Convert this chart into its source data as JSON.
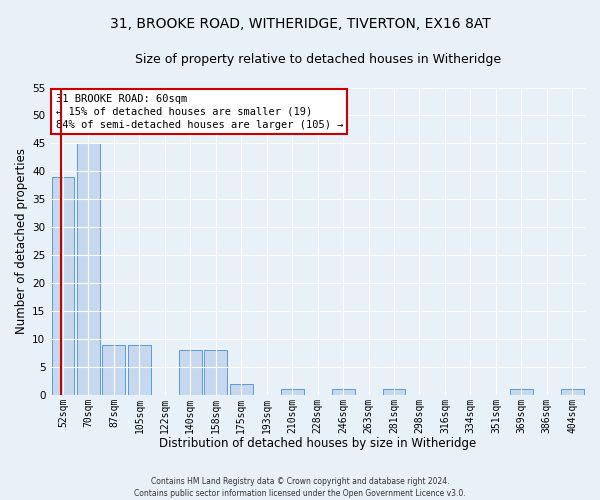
{
  "title1": "31, BROOKE ROAD, WITHERIDGE, TIVERTON, EX16 8AT",
  "title2": "Size of property relative to detached houses in Witheridge",
  "xlabel": "Distribution of detached houses by size in Witheridge",
  "ylabel": "Number of detached properties",
  "bin_labels": [
    "52sqm",
    "70sqm",
    "87sqm",
    "105sqm",
    "122sqm",
    "140sqm",
    "158sqm",
    "175sqm",
    "193sqm",
    "210sqm",
    "228sqm",
    "246sqm",
    "263sqm",
    "281sqm",
    "298sqm",
    "316sqm",
    "334sqm",
    "351sqm",
    "369sqm",
    "386sqm",
    "404sqm"
  ],
  "bar_values": [
    39,
    45,
    9,
    9,
    0,
    8,
    8,
    2,
    0,
    1,
    0,
    1,
    0,
    1,
    0,
    0,
    0,
    0,
    1,
    0,
    1
  ],
  "bar_color": "#c5d8ef",
  "bar_edge_color": "#5b9bd5",
  "vline_color": "#cc0000",
  "ylim": [
    0,
    55
  ],
  "yticks": [
    0,
    5,
    10,
    15,
    20,
    25,
    30,
    35,
    40,
    45,
    50,
    55
  ],
  "annotation_title": "31 BROOKE ROAD: 60sqm",
  "annotation_line1": "← 15% of detached houses are smaller (19)",
  "annotation_line2": "84% of semi-detached houses are larger (105) →",
  "annotation_box_color": "#ffffff",
  "annotation_box_edge": "#cc0000",
  "footer1": "Contains HM Land Registry data © Crown copyright and database right 2024.",
  "footer2": "Contains public sector information licensed under the Open Government Licence v3.0.",
  "background_color": "#e8f0f8",
  "grid_color": "#ffffff",
  "title1_fontsize": 10,
  "title2_fontsize": 9,
  "xlabel_fontsize": 8.5,
  "ylabel_fontsize": 8.5,
  "footer_fontsize": 5.5,
  "annotation_fontsize": 7.5
}
